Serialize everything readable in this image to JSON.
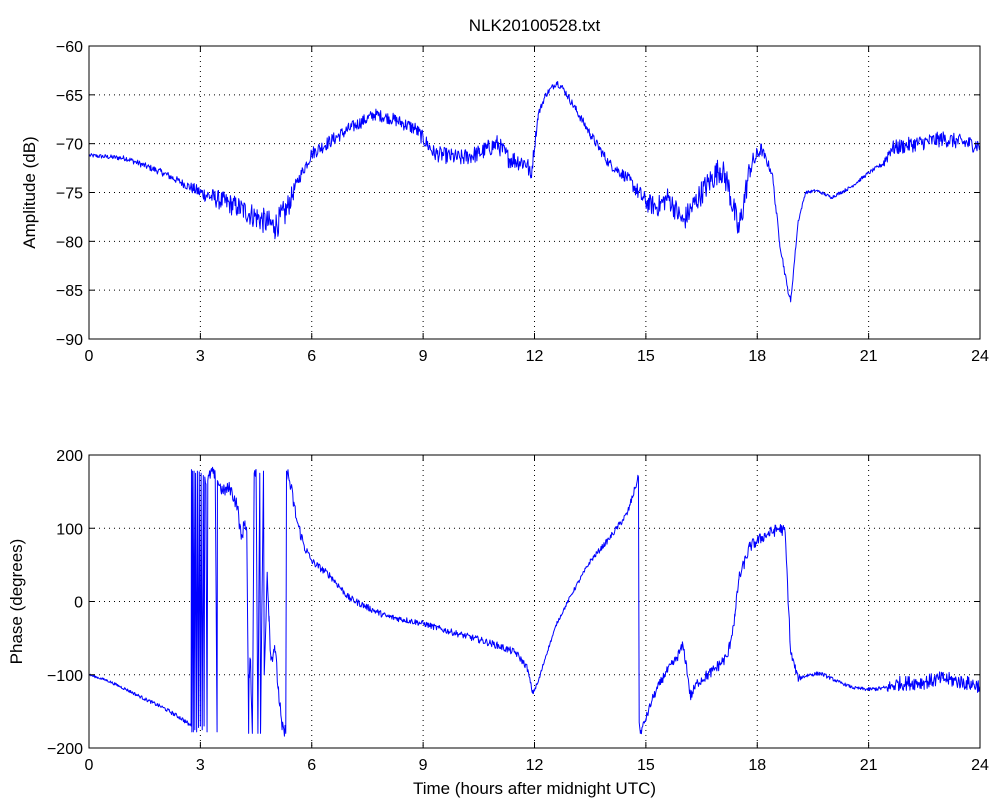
{
  "chart_data": [
    {
      "type": "line",
      "title": "NLK20100528.txt",
      "xlabel": "",
      "ylabel": "Amplitude (dB)",
      "xlim": [
        0,
        24
      ],
      "ylim": [
        -90,
        -60
      ],
      "xticks": [
        0,
        3,
        6,
        9,
        12,
        15,
        18,
        21,
        24
      ],
      "yticks": [
        -60,
        -65,
        -70,
        -75,
        -80,
        -85,
        -90
      ],
      "grid": true,
      "color": "#0000ff",
      "series": [
        {
          "noise": [
            [
              0,
              0.2
            ],
            [
              2.5,
              0.4
            ],
            [
              3.5,
              1.0
            ],
            [
              5.3,
              1.5
            ],
            [
              5.6,
              0.6
            ],
            [
              6.2,
              0.7
            ],
            [
              8,
              0.6
            ],
            [
              9.2,
              0.8
            ],
            [
              11.8,
              1.0
            ],
            [
              12.2,
              0.3
            ],
            [
              13,
              0.4
            ],
            [
              14.5,
              0.6
            ],
            [
              15,
              1.0
            ],
            [
              17.6,
              1.5
            ],
            [
              18.2,
              0.5
            ],
            [
              18.9,
              0.3
            ],
            [
              19.2,
              0.15
            ],
            [
              21.3,
              0.2
            ],
            [
              21.5,
              0.8
            ],
            [
              24,
              0.8
            ]
          ],
          "points": [
            [
              0,
              -71.2
            ],
            [
              1,
              -71.5
            ],
            [
              2,
              -73
            ],
            [
              3,
              -75
            ],
            [
              4,
              -76.5
            ],
            [
              4.5,
              -77.5
            ],
            [
              5,
              -78.5
            ],
            [
              5.3,
              -77
            ],
            [
              5.6,
              -74
            ],
            [
              6,
              -71
            ],
            [
              7,
              -68.5
            ],
            [
              7.7,
              -67
            ],
            [
              8.2,
              -67.5
            ],
            [
              8.8,
              -68.5
            ],
            [
              9.3,
              -71
            ],
            [
              10,
              -71.5
            ],
            [
              10.5,
              -71
            ],
            [
              11,
              -70
            ],
            [
              11.3,
              -71.5
            ],
            [
              11.8,
              -72
            ],
            [
              11.9,
              -73.5
            ],
            [
              12.1,
              -67
            ],
            [
              12.3,
              -65
            ],
            [
              12.6,
              -63.7
            ],
            [
              12.8,
              -64.5
            ],
            [
              13.5,
              -69
            ],
            [
              14,
              -72
            ],
            [
              14.5,
              -73.5
            ],
            [
              15,
              -76
            ],
            [
              15.3,
              -76.5
            ],
            [
              15.6,
              -75.5
            ],
            [
              16,
              -78
            ],
            [
              16.5,
              -75
            ],
            [
              17,
              -72.5
            ],
            [
              17.2,
              -74
            ],
            [
              17.5,
              -79
            ],
            [
              17.8,
              -72.5
            ],
            [
              18.1,
              -70.5
            ],
            [
              18.4,
              -73
            ],
            [
              18.6,
              -80
            ],
            [
              18.8,
              -84.5
            ],
            [
              18.9,
              -86.2
            ],
            [
              19.1,
              -78
            ],
            [
              19.3,
              -75
            ],
            [
              19.6,
              -74.8
            ],
            [
              20,
              -75.5
            ],
            [
              20.5,
              -74.5
            ],
            [
              21,
              -73
            ],
            [
              21.4,
              -72
            ],
            [
              21.6,
              -70.5
            ],
            [
              22,
              -70.2
            ],
            [
              23,
              -69.5
            ],
            [
              24,
              -70.2
            ]
          ]
        }
      ]
    },
    {
      "type": "line",
      "title": "",
      "xlabel": "Time (hours after midnight UTC)",
      "ylabel": "Phase (degrees)",
      "xlim": [
        0,
        24
      ],
      "ylim": [
        -200,
        200
      ],
      "xticks": [
        0,
        3,
        6,
        9,
        12,
        15,
        18,
        21,
        24
      ],
      "yticks": [
        200,
        100,
        0,
        -100,
        -200
      ],
      "grid": true,
      "color": "#0000ff",
      "series": [
        {
          "noise": [
            [
              0,
              1.5
            ],
            [
              2.7,
              3
            ],
            [
              3.1,
              8
            ],
            [
              5.4,
              12
            ],
            [
              6,
              5
            ],
            [
              9,
              4
            ],
            [
              11.5,
              5
            ],
            [
              12.5,
              2
            ],
            [
              14.8,
              5
            ],
            [
              15.2,
              6
            ],
            [
              17,
              8
            ],
            [
              18.9,
              8
            ],
            [
              19.2,
              3
            ],
            [
              20.5,
              2
            ],
            [
              21.4,
              3
            ],
            [
              21.6,
              10
            ],
            [
              24,
              10
            ]
          ],
          "points": [
            [
              0,
              -100
            ],
            [
              0.5,
              -108
            ],
            [
              1,
              -120
            ],
            [
              1.5,
              -133
            ],
            [
              2,
              -145
            ],
            [
              2.5,
              -160
            ],
            [
              2.75,
              -170
            ],
            [
              2.76,
              180
            ],
            [
              2.77,
              -178
            ],
            [
              2.79,
              178
            ],
            [
              2.81,
              -178
            ],
            [
              2.83,
              178
            ],
            [
              2.85,
              -175
            ],
            [
              2.87,
              175
            ],
            [
              2.9,
              -178
            ],
            [
              2.92,
              178
            ],
            [
              2.95,
              -172
            ],
            [
              2.97,
              177
            ],
            [
              3.0,
              -170
            ],
            [
              3.02,
              175
            ],
            [
              3.05,
              -175
            ],
            [
              3.08,
              172
            ],
            [
              3.1,
              -170
            ],
            [
              3.12,
              170
            ],
            [
              3.15,
              160
            ],
            [
              3.18,
              -178
            ],
            [
              3.2,
              165
            ],
            [
              3.3,
              178
            ],
            [
              3.4,
              170
            ],
            [
              3.45,
              -178
            ],
            [
              3.46,
              165
            ],
            [
              3.6,
              150
            ],
            [
              3.8,
              155
            ],
            [
              4.0,
              130
            ],
            [
              4.1,
              85
            ],
            [
              4.2,
              110
            ],
            [
              4.25,
              95
            ],
            [
              4.3,
              -180
            ],
            [
              4.31,
              -100
            ],
            [
              4.35,
              -80
            ],
            [
              4.4,
              -180
            ],
            [
              4.45,
              175
            ],
            [
              4.5,
              180
            ],
            [
              4.55,
              -180
            ],
            [
              4.6,
              175
            ],
            [
              4.62,
              -180
            ],
            [
              4.7,
              178
            ],
            [
              4.72,
              -100
            ],
            [
              4.8,
              40
            ],
            [
              4.85,
              -20
            ],
            [
              4.9,
              -80
            ],
            [
              5.0,
              -60
            ],
            [
              5.1,
              -120
            ],
            [
              5.2,
              -175
            ],
            [
              5.3,
              -180
            ],
            [
              5.32,
              178
            ],
            [
              5.4,
              165
            ],
            [
              5.6,
              110
            ],
            [
              5.8,
              75
            ],
            [
              6,
              55
            ],
            [
              6.5,
              35
            ],
            [
              7,
              5
            ],
            [
              7.5,
              -8
            ],
            [
              8,
              -20
            ],
            [
              8.5,
              -25
            ],
            [
              9,
              -30
            ],
            [
              9.5,
              -38
            ],
            [
              10,
              -45
            ],
            [
              10.5,
              -52
            ],
            [
              11,
              -60
            ],
            [
              11.5,
              -70
            ],
            [
              11.8,
              -90
            ],
            [
              11.95,
              -125
            ],
            [
              12.1,
              -110
            ],
            [
              12.3,
              -75
            ],
            [
              12.6,
              -30
            ],
            [
              13,
              10
            ],
            [
              13.5,
              55
            ],
            [
              14,
              85
            ],
            [
              14.5,
              120
            ],
            [
              14.8,
              170
            ],
            [
              14.82,
              -165
            ],
            [
              14.85,
              -180
            ],
            [
              15,
              -160
            ],
            [
              15.2,
              -130
            ],
            [
              15.5,
              -100
            ],
            [
              15.8,
              -80
            ],
            [
              16,
              -60
            ],
            [
              16.1,
              -90
            ],
            [
              16.2,
              -130
            ],
            [
              16.4,
              -110
            ],
            [
              16.8,
              -95
            ],
            [
              17.2,
              -75
            ],
            [
              17.4,
              -20
            ],
            [
              17.5,
              30
            ],
            [
              17.8,
              75
            ],
            [
              18.2,
              90
            ],
            [
              18.6,
              100
            ],
            [
              18.75,
              95
            ],
            [
              18.9,
              -70
            ],
            [
              19.1,
              -105
            ],
            [
              19.4,
              -100
            ],
            [
              19.7,
              -98
            ],
            [
              20.2,
              -110
            ],
            [
              20.6,
              -118
            ],
            [
              21,
              -120
            ],
            [
              21.5,
              -118
            ],
            [
              21.8,
              -112
            ],
            [
              22.5,
              -110
            ],
            [
              23,
              -105
            ],
            [
              24,
              -115
            ]
          ]
        }
      ]
    }
  ]
}
